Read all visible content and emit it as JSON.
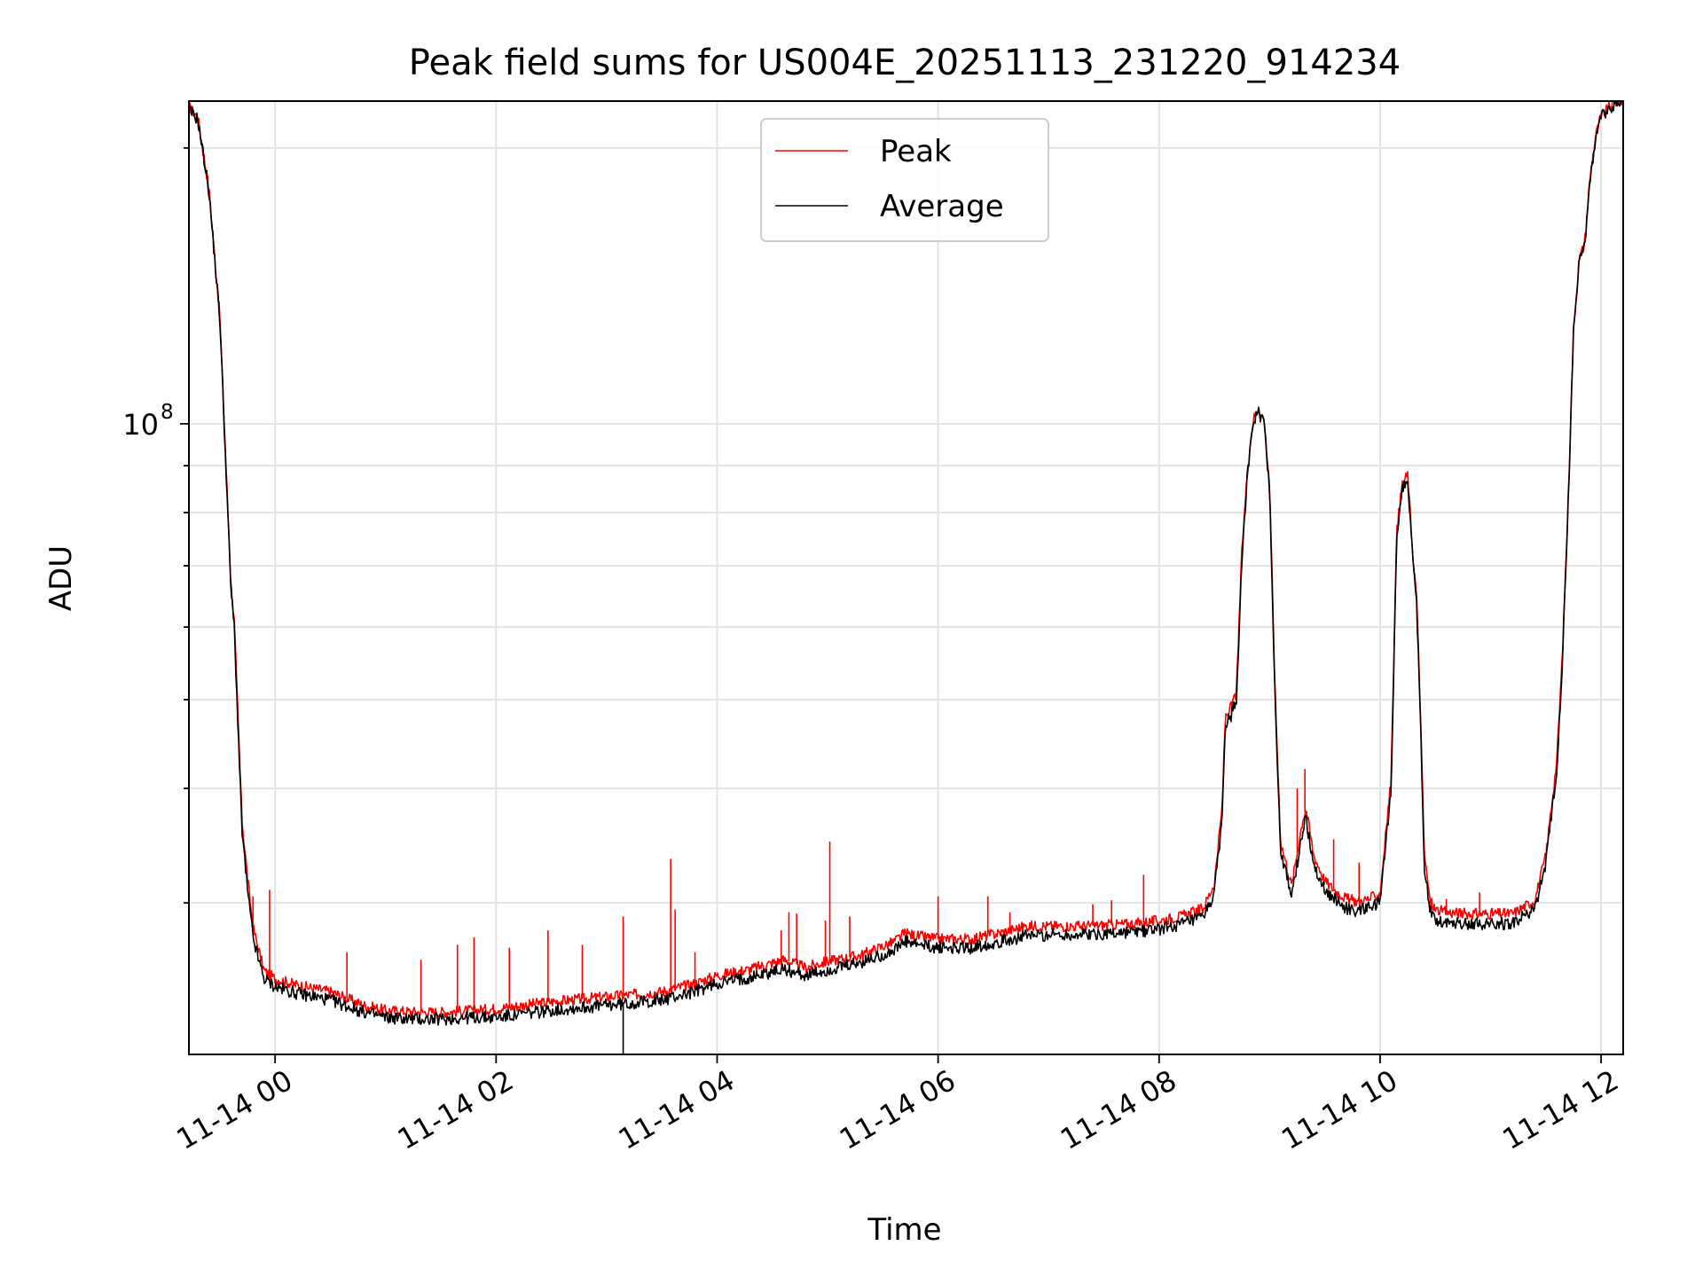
{
  "chart_data": {
    "type": "line",
    "title": "Peak field sums for US004E_20251113_231220_914234",
    "xlabel": "Time",
    "ylabel": "ADU",
    "yscale": "log",
    "grid": true,
    "legend_position": "top-center",
    "x_unit": "hours since 11-14 00:00",
    "xlim": [
      -0.78,
      12.2
    ],
    "ylim": [
      20500000,
      225000000
    ],
    "x_ticks": [
      0,
      2,
      4,
      6,
      8,
      10,
      12
    ],
    "x_tick_labels": [
      "11-14 00",
      "11-14 02",
      "11-14 04",
      "11-14 06",
      "11-14 08",
      "11-14 10",
      "11-14 12"
    ],
    "y_major_ticks": [
      100000000
    ],
    "y_major_tick_labels": [
      "10"
    ],
    "y_major_tick_exponents": [
      "8"
    ],
    "y_minor_ticks": [
      30000000,
      40000000,
      50000000,
      60000000,
      70000000,
      80000000,
      90000000,
      200000000
    ],
    "series": [
      {
        "name": "Average",
        "color": "#000000",
        "x": [
          -0.78,
          -0.7,
          -0.6,
          -0.5,
          -0.4,
          -0.37,
          -0.3,
          -0.25,
          -0.2,
          -0.15,
          -0.1,
          0.0,
          0.2,
          0.5,
          0.8,
          1.0,
          1.3,
          1.5,
          1.8,
          2.0,
          2.5,
          3.0,
          3.2,
          3.5,
          3.8,
          4.0,
          4.3,
          4.6,
          4.8,
          5.0,
          5.3,
          5.6,
          5.7,
          5.8,
          6.0,
          6.3,
          6.6,
          6.8,
          7.0,
          7.3,
          7.6,
          7.8,
          8.0,
          8.2,
          8.4,
          8.5,
          8.57,
          8.6,
          8.65,
          8.7,
          8.75,
          8.8,
          8.85,
          8.9,
          8.95,
          9.0,
          9.05,
          9.1,
          9.2,
          9.3,
          9.33,
          9.4,
          9.5,
          9.6,
          9.7,
          9.8,
          9.9,
          10.0,
          10.1,
          10.15,
          10.2,
          10.25,
          10.3,
          10.33,
          10.36,
          10.4,
          10.45,
          10.5,
          10.6,
          10.8,
          11.0,
          11.2,
          11.4,
          11.5,
          11.6,
          11.65,
          11.7,
          11.75,
          11.8,
          11.85,
          11.9,
          11.95,
          12.0,
          12.1,
          12.2
        ],
        "y": [
          220000000,
          215000000,
          180000000,
          130000000,
          66000000,
          60000000,
          36000000,
          31000000,
          27500000,
          26000000,
          24800000,
          24300000,
          23900000,
          23500000,
          22800000,
          22500000,
          22400000,
          22400000,
          22500000,
          22500000,
          22900000,
          23200000,
          23300000,
          23500000,
          24000000,
          24500000,
          24900000,
          25400000,
          25000000,
          25300000,
          25800000,
          26600000,
          27200000,
          27000000,
          26800000,
          26800000,
          27300000,
          27600000,
          27700000,
          27700000,
          27800000,
          27900000,
          28100000,
          28400000,
          28900000,
          30700000,
          37000000,
          47000000,
          48000000,
          50000000,
          72000000,
          88000000,
          100000000,
          103000000,
          100000000,
          85000000,
          50000000,
          34000000,
          30500000,
          36000000,
          37000000,
          33000000,
          31000000,
          30200000,
          29600000,
          29400000,
          29600000,
          30000000,
          40000000,
          75000000,
          85000000,
          87000000,
          70000000,
          64000000,
          50000000,
          33000000,
          29500000,
          28800000,
          28600000,
          28500000,
          28500000,
          28500000,
          29500000,
          33000000,
          42000000,
          55000000,
          80000000,
          125000000,
          150000000,
          156000000,
          185000000,
          205000000,
          216000000,
          222000000,
          225000000
        ]
      },
      {
        "name": "Peak",
        "color": "#ff0000",
        "x": [
          -0.78,
          -0.7,
          -0.6,
          -0.5,
          -0.4,
          -0.37,
          -0.3,
          -0.25,
          -0.2,
          -0.15,
          -0.1,
          0.0,
          0.2,
          0.5,
          0.8,
          1.0,
          1.3,
          1.5,
          1.8,
          2.0,
          2.5,
          3.0,
          3.2,
          3.5,
          3.8,
          4.0,
          4.3,
          4.6,
          4.8,
          5.0,
          5.3,
          5.6,
          5.7,
          5.8,
          6.0,
          6.3,
          6.6,
          6.8,
          7.0,
          7.3,
          7.6,
          7.8,
          8.0,
          8.2,
          8.4,
          8.5,
          8.57,
          8.6,
          8.65,
          8.7,
          8.75,
          8.8,
          8.85,
          8.9,
          8.95,
          9.0,
          9.05,
          9.1,
          9.2,
          9.3,
          9.33,
          9.4,
          9.5,
          9.6,
          9.7,
          9.8,
          9.9,
          10.0,
          10.1,
          10.15,
          10.2,
          10.25,
          10.3,
          10.33,
          10.36,
          10.4,
          10.45,
          10.5,
          10.6,
          10.8,
          11.0,
          11.2,
          11.4,
          11.5,
          11.6,
          11.65,
          11.7,
          11.75,
          11.8,
          11.85,
          11.9,
          11.95,
          12.0,
          12.1,
          12.2
        ],
        "y": [
          222000000,
          216000000,
          181000000,
          131000000,
          67000000,
          61000000,
          37000000,
          32000000,
          28200000,
          26700000,
          25300000,
          24800000,
          24400000,
          24000000,
          23200000,
          22900000,
          22800000,
          22800000,
          22900000,
          23000000,
          23400000,
          23700000,
          23800000,
          24000000,
          24500000,
          25000000,
          25400000,
          26000000,
          25500000,
          25900000,
          26300000,
          27200000,
          27800000,
          27600000,
          27400000,
          27400000,
          27900000,
          28300000,
          28300000,
          28300000,
          28400000,
          28500000,
          28700000,
          29000000,
          29600000,
          31500000,
          38000000,
          48000000,
          49000000,
          51000000,
          73000000,
          89000000,
          101000000,
          104000000,
          101000000,
          86000000,
          51000000,
          35000000,
          31300000,
          37000000,
          38000000,
          33800000,
          31700000,
          30900000,
          30300000,
          30100000,
          30300000,
          30700000,
          41000000,
          76000000,
          86000000,
          88000000,
          71000000,
          65000000,
          51000000,
          34000000,
          30200000,
          29500000,
          29300000,
          29200000,
          29200000,
          29200000,
          30200000,
          33800000,
          43000000,
          56000000,
          81000000,
          126000000,
          151000000,
          157000000,
          186000000,
          206000000,
          217000000,
          223000000,
          226000000
        ]
      }
    ],
    "peak_spikes": [
      {
        "x": -0.2,
        "y": 30500000
      },
      {
        "x": -0.05,
        "y": 31000000
      },
      {
        "x": 0.65,
        "y": 26500000
      },
      {
        "x": 1.32,
        "y": 26000000
      },
      {
        "x": 1.65,
        "y": 27000000
      },
      {
        "x": 1.8,
        "y": 27500000
      },
      {
        "x": 2.12,
        "y": 26800000
      },
      {
        "x": 2.47,
        "y": 28000000
      },
      {
        "x": 2.78,
        "y": 27000000
      },
      {
        "x": 3.15,
        "y": 29000000
      },
      {
        "x": 3.58,
        "y": 33500000
      },
      {
        "x": 3.62,
        "y": 29500000
      },
      {
        "x": 3.8,
        "y": 26500000
      },
      {
        "x": 4.58,
        "y": 28000000
      },
      {
        "x": 4.65,
        "y": 29300000
      },
      {
        "x": 4.72,
        "y": 29200000
      },
      {
        "x": 4.98,
        "y": 28700000
      },
      {
        "x": 5.02,
        "y": 35000000
      },
      {
        "x": 5.2,
        "y": 29000000
      },
      {
        "x": 6.0,
        "y": 30500000
      },
      {
        "x": 6.45,
        "y": 30500000
      },
      {
        "x": 6.65,
        "y": 29300000
      },
      {
        "x": 7.4,
        "y": 29900000
      },
      {
        "x": 7.57,
        "y": 30200000
      },
      {
        "x": 7.86,
        "y": 32200000
      },
      {
        "x": 9.25,
        "y": 40000000
      },
      {
        "x": 9.32,
        "y": 42000000
      },
      {
        "x": 9.58,
        "y": 35200000
      },
      {
        "x": 9.81,
        "y": 33200000
      },
      {
        "x": 10.6,
        "y": 30300000
      },
      {
        "x": 10.9,
        "y": 30800000
      }
    ],
    "average_dips": [
      {
        "x": 3.15,
        "y": 20500000
      }
    ]
  }
}
